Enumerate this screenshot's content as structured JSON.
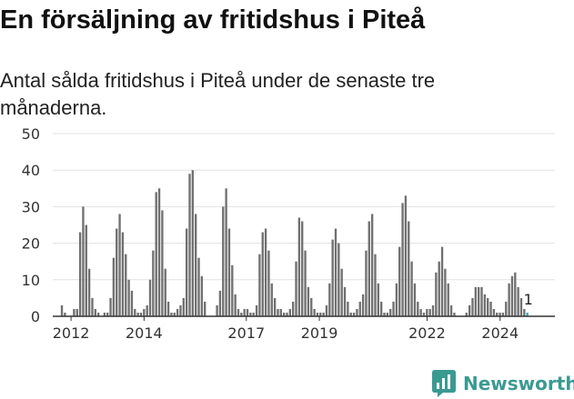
{
  "title": "En försäljning av fritidshus i Piteå",
  "subtitle": "Antal sålda fritidshus i Piteå under de senaste tre månaderna.",
  "brand": {
    "name": "Newsworthy",
    "logo_icon": "newsworthy-logo-icon",
    "color": "#3a9a92"
  },
  "chart_data": {
    "type": "bar",
    "title": "",
    "xlabel": "",
    "ylabel": "",
    "ylim": [
      0,
      50
    ],
    "yticks": [
      0,
      10,
      20,
      30,
      40,
      50
    ],
    "xticks": [
      {
        "label": "2012",
        "x": 2012.0
      },
      {
        "label": "2014",
        "x": 2014.0
      },
      {
        "label": "2017",
        "x": 2016.8
      },
      {
        "label": "2019",
        "x": 2018.8
      },
      {
        "label": "2022",
        "x": 2021.75
      },
      {
        "label": "2024",
        "x": 2023.75
      }
    ],
    "x_start": 2011.75,
    "monthly_step": 0.0833,
    "bar_color": "#707070",
    "highlight_color": "#3aa3c7",
    "grid": true,
    "values": [
      3,
      1,
      0,
      0,
      2,
      2,
      23,
      30,
      25,
      13,
      5,
      2,
      1,
      0,
      1,
      1,
      5,
      16,
      24,
      28,
      23,
      17,
      10,
      7,
      2,
      1,
      1,
      2,
      3,
      10,
      18,
      34,
      35,
      29,
      13,
      4,
      1,
      1,
      2,
      3,
      5,
      24,
      39,
      40,
      28,
      16,
      11,
      4,
      0,
      0,
      0,
      3,
      7,
      30,
      35,
      24,
      14,
      6,
      2,
      1,
      2,
      2,
      1,
      1,
      3,
      17,
      23,
      24,
      18,
      9,
      5,
      2,
      2,
      1,
      1,
      2,
      4,
      15,
      27,
      26,
      18,
      8,
      5,
      2,
      1,
      1,
      1,
      3,
      9,
      21,
      24,
      20,
      13,
      8,
      4,
      1,
      1,
      2,
      4,
      6,
      18,
      26,
      28,
      17,
      9,
      4,
      1,
      1,
      2,
      4,
      9,
      19,
      31,
      33,
      26,
      15,
      9,
      4,
      2,
      1,
      2,
      2,
      3,
      12,
      15,
      19,
      13,
      9,
      3,
      1,
      0,
      0,
      0,
      1,
      3,
      5,
      8,
      8,
      8,
      6,
      5,
      4,
      2,
      1,
      1,
      1,
      4,
      9,
      11,
      12,
      8,
      5,
      2,
      1
    ],
    "last_value_label": "1"
  }
}
